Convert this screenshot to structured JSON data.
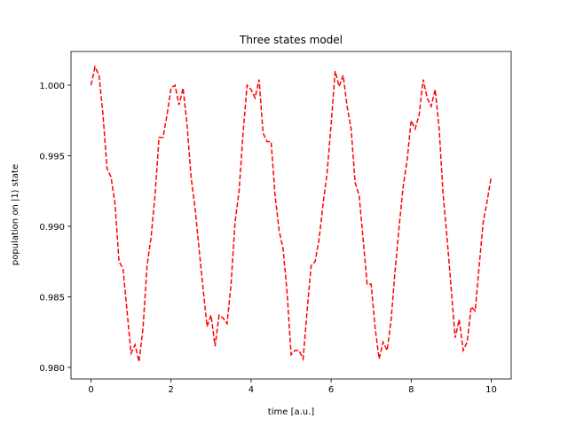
{
  "chart_data": {
    "type": "line",
    "title": "Three states model",
    "xlabel": "time [a.u.]",
    "ylabel": "population on  |1⟩ state",
    "x": [
      0,
      0.1,
      0.2,
      0.3,
      0.4,
      0.5,
      0.6,
      0.7,
      0.8,
      0.9,
      1,
      1.1,
      1.2,
      1.3,
      1.4,
      1.5,
      1.6,
      1.7,
      1.8,
      1.9,
      2,
      2.1,
      2.2,
      2.3,
      2.4,
      2.5,
      2.6,
      2.7,
      2.8,
      2.9,
      3,
      3.1,
      3.2,
      3.3,
      3.4,
      3.5,
      3.6,
      3.7,
      3.8,
      3.9,
      4,
      4.1,
      4.2,
      4.3,
      4.4,
      4.5,
      4.6,
      4.7,
      4.8,
      4.9,
      5,
      5.1,
      5.2,
      5.3,
      5.4,
      5.5,
      5.6,
      5.7,
      5.8,
      5.9,
      6,
      6.1,
      6.2,
      6.3,
      6.4,
      6.5,
      6.6,
      6.7,
      6.8,
      6.9,
      7,
      7.1,
      7.2,
      7.3,
      7.4,
      7.5,
      7.6,
      7.7,
      7.8,
      7.9,
      8,
      8.1,
      8.2,
      8.3,
      8.4,
      8.5,
      8.6,
      8.7,
      8.8,
      8.9,
      9,
      9.1,
      9.2,
      9.3,
      9.4,
      9.5,
      9.6,
      9.7,
      9.8,
      9.9,
      10
    ],
    "series": [
      {
        "name": "population",
        "color": "#ff0000",
        "values": [
          1.0,
          1.0013,
          1.0007,
          0.9979,
          0.9941,
          0.9935,
          0.9916,
          0.9875,
          0.987,
          0.984,
          0.981,
          0.9816,
          0.9804,
          0.9828,
          0.9872,
          0.9892,
          0.9922,
          0.9963,
          0.9963,
          0.9979,
          0.9998,
          1.0,
          0.9986,
          0.9998,
          0.9972,
          0.9935,
          0.9913,
          0.9884,
          0.9856,
          0.9829,
          0.9837,
          0.9815,
          0.9837,
          0.9835,
          0.9831,
          0.9859,
          0.9903,
          0.9925,
          0.9966,
          1.0,
          0.9997,
          0.9991,
          1.0004,
          0.9966,
          0.996,
          0.996,
          0.9922,
          0.9897,
          0.9884,
          0.9853,
          0.9809,
          0.9812,
          0.9812,
          0.9806,
          0.984,
          0.9872,
          0.9875,
          0.9891,
          0.9916,
          0.9938,
          0.9972,
          1.001,
          0.9999,
          1.0007,
          0.9985,
          0.9969,
          0.9931,
          0.9922,
          0.9891,
          0.9859,
          0.9859,
          0.9828,
          0.9806,
          0.9818,
          0.9812,
          0.9834,
          0.9869,
          0.99,
          0.9928,
          0.9947,
          0.9975,
          0.9969,
          0.9979,
          1.0004,
          0.9991,
          0.9985,
          0.9997,
          0.9969,
          0.9922,
          0.9891,
          0.9856,
          0.9821,
          0.9834,
          0.9812,
          0.9818,
          0.9843,
          0.984,
          0.9872,
          0.9903,
          0.9918,
          0.9935
        ]
      }
    ],
    "xlim": [
      -0.5,
      10.5
    ],
    "ylim": [
      0.97918,
      1.00239
    ],
    "xticks": [
      0,
      2,
      4,
      6,
      8,
      10
    ],
    "yticks": [
      {
        "value": 0.98,
        "label": "0.980"
      },
      {
        "value": 0.985,
        "label": "0.985"
      },
      {
        "value": 0.99,
        "label": "0.990"
      },
      {
        "value": 0.995,
        "label": "0.995"
      },
      {
        "value": 1.0,
        "label": "1.000"
      }
    ],
    "linestyle": "dashed"
  }
}
